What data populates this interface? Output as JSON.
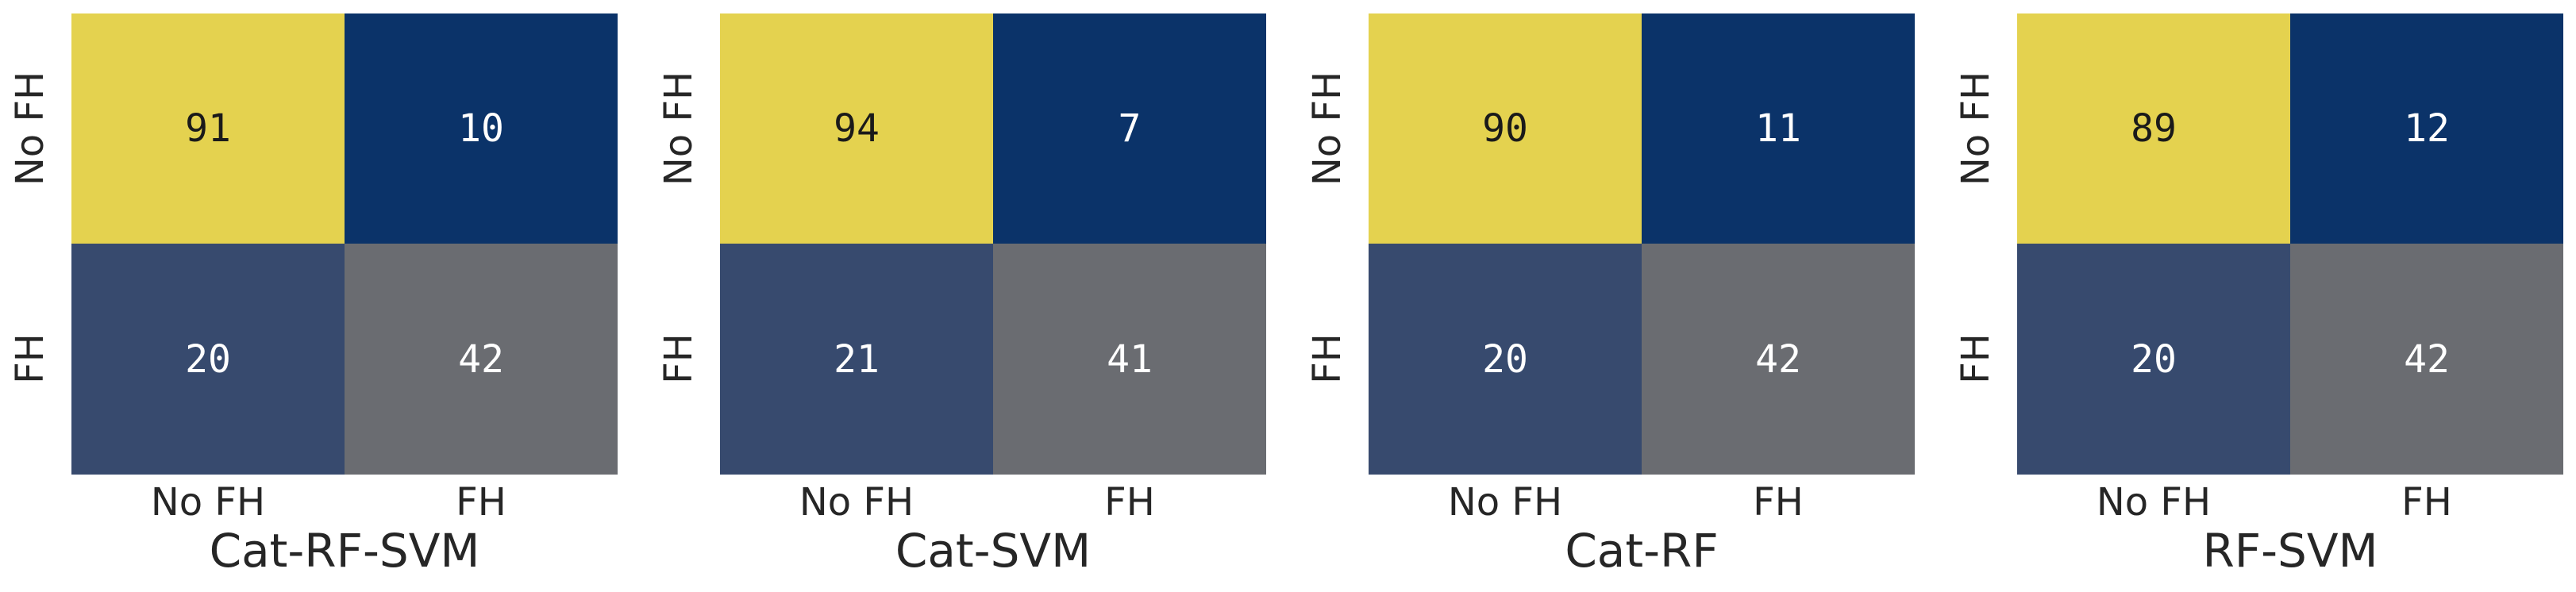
{
  "palette": {
    "figure_bg": "#ffffff",
    "cell_max": "#e4d24f",
    "cell_min": "#0b3369",
    "cell_low": "#374a6e",
    "cell_mid": "#6a6c71",
    "annot_dark": "#1a1a1a",
    "annot_light": "#ffffff",
    "label_color": "#262626"
  },
  "chart_data": [
    {
      "type": "heatmap",
      "title": "Cat-RF-SVM",
      "rows": [
        "No FH",
        "FH"
      ],
      "cols": [
        "No FH",
        "FH"
      ],
      "values": [
        [
          91,
          10
        ],
        [
          20,
          42
        ]
      ],
      "cell_colors": [
        [
          "#e4d24f",
          "#0b3369"
        ],
        [
          "#374a6e",
          "#6a6c71"
        ]
      ],
      "legend": "none",
      "grid": "off"
    },
    {
      "type": "heatmap",
      "title": "Cat-SVM",
      "rows": [
        "No FH",
        "FH"
      ],
      "cols": [
        "No FH",
        "FH"
      ],
      "values": [
        [
          94,
          7
        ],
        [
          21,
          41
        ]
      ],
      "cell_colors": [
        [
          "#e4d24f",
          "#0b3369"
        ],
        [
          "#374a6e",
          "#6a6c71"
        ]
      ],
      "legend": "none",
      "grid": "off"
    },
    {
      "type": "heatmap",
      "title": "Cat-RF",
      "rows": [
        "No FH",
        "FH"
      ],
      "cols": [
        "No FH",
        "FH"
      ],
      "values": [
        [
          90,
          11
        ],
        [
          20,
          42
        ]
      ],
      "cell_colors": [
        [
          "#e4d24f",
          "#0b3369"
        ],
        [
          "#374a6e",
          "#6a6c71"
        ]
      ],
      "legend": "none",
      "grid": "off"
    },
    {
      "type": "heatmap",
      "title": "RF-SVM",
      "rows": [
        "No FH",
        "FH"
      ],
      "cols": [
        "No FH",
        "FH"
      ],
      "values": [
        [
          89,
          12
        ],
        [
          20,
          42
        ]
      ],
      "cell_colors": [
        [
          "#e4d24f",
          "#0b3369"
        ],
        [
          "#374a6e",
          "#6a6c71"
        ]
      ],
      "legend": "none",
      "grid": "off"
    }
  ]
}
